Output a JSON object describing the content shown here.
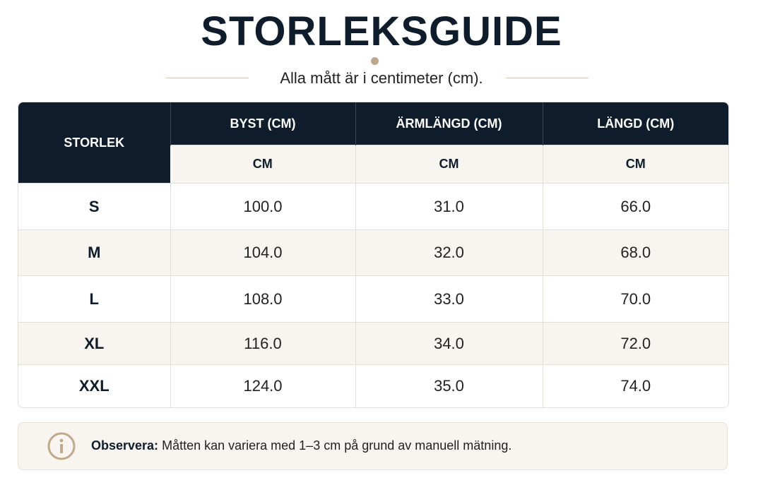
{
  "header": {
    "title": "STORLEKSGUIDE",
    "subtitle": "Alla mått är i centimeter (cm)."
  },
  "table": {
    "size_header": "STORLEK",
    "columns": [
      {
        "label": "BYST (CM)",
        "unit": "CM"
      },
      {
        "label": "ÄRMLÄNGD (CM)",
        "unit": "CM"
      },
      {
        "label": "LÄNGD (CM)",
        "unit": "CM"
      }
    ],
    "rows": [
      [
        "S",
        "100.0",
        "31.0",
        "66.0"
      ],
      [
        "M",
        "104.0",
        "32.0",
        "68.0"
      ],
      [
        "L",
        "108.0",
        "33.0",
        "70.0"
      ],
      [
        "XL",
        "116.0",
        "34.0",
        "72.0"
      ],
      [
        "XXL",
        "124.0",
        "35.0",
        "74.0"
      ]
    ]
  },
  "note": {
    "label": "Observera:",
    "text": "Måtten kan variera med 1–3 cm på grund av manuell mätning."
  }
}
